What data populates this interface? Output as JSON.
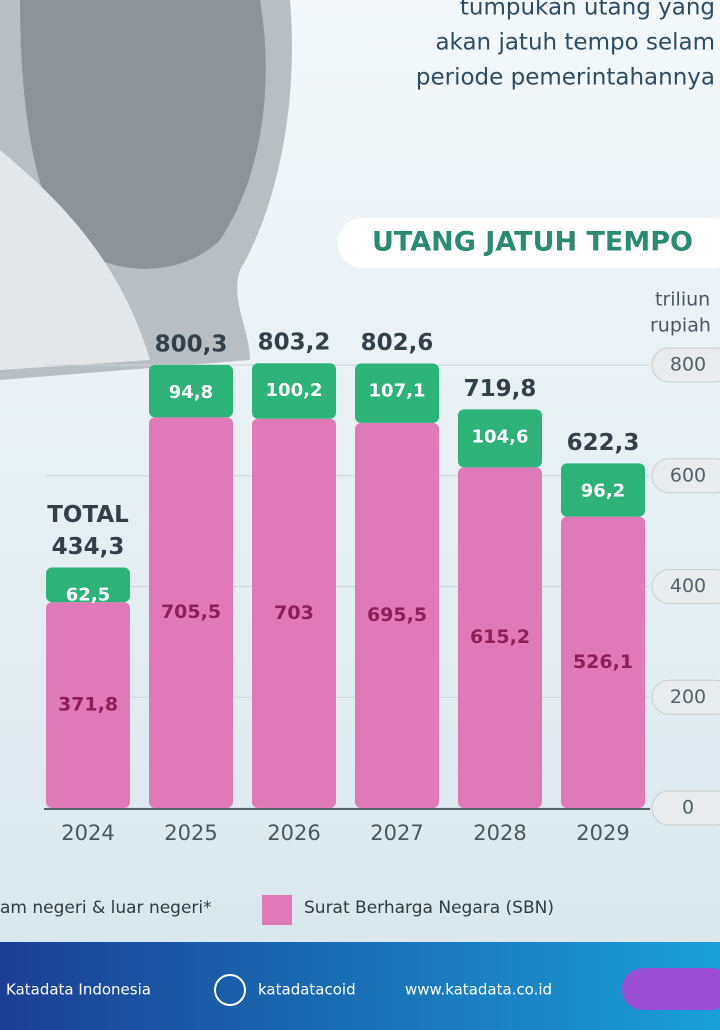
{
  "header": {
    "lines": [
      "tumpukan utang yang",
      "akan jatuh tempo selam",
      "periode pemerintahannya"
    ]
  },
  "chart_data": {
    "type": "stacked-bar",
    "title": "UTANG JATUH TEMPO",
    "y_label": [
      "triliun",
      "rupiah"
    ],
    "categories": [
      "2024",
      "2025",
      "2026",
      "2027",
      "2028",
      "2029"
    ],
    "series": [
      {
        "name": "Surat Berharga Negara (SBN)",
        "color": "#e07ab6",
        "values": [
          371.8,
          705.5,
          703,
          695.5,
          615.2,
          526.1
        ],
        "value_labels": [
          "371,8",
          "705,5",
          "703",
          "695,5",
          "615,2",
          "526,1"
        ]
      },
      {
        "name": "am negeri & luar negeri*",
        "color": "#2db37a",
        "values": [
          62.5,
          94.8,
          100.2,
          107.1,
          104.6,
          96.2
        ],
        "value_labels": [
          "62,5",
          "94,8",
          "100,2",
          "107,1",
          "104,6",
          "96,2"
        ]
      }
    ],
    "total_label": "TOTAL",
    "totals": {
      "values": [
        434.3,
        800.3,
        803.2,
        802.6,
        719.8,
        622.3
      ],
      "value_labels": [
        "434,3",
        "800,3",
        "803,2",
        "802,6",
        "719,8",
        "622,3"
      ]
    },
    "ylim": [
      0,
      800
    ],
    "yticks": [
      0,
      200,
      400,
      600,
      800
    ],
    "grid": true
  },
  "footer": {
    "brand": "Katadata Indonesia",
    "social": "katadatacoid",
    "url": "www.katadata.co.id"
  }
}
